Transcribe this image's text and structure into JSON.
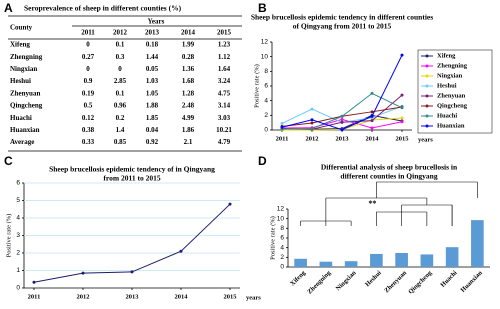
{
  "panels": [
    "A",
    "B",
    "C",
    "D"
  ],
  "table": {
    "title": "Seroprevalence of sheep in different counties (%)",
    "header": [
      "County",
      "Years"
    ],
    "columns": [
      "2011",
      "2012",
      "2013",
      "2014",
      "2015"
    ],
    "rows": [
      [
        "Xifeng",
        0,
        0.1,
        0.18,
        1.99,
        1.23
      ],
      [
        "Zhengning",
        0.27,
        0.3,
        1.44,
        0.28,
        1.12
      ],
      [
        "Ningxian",
        0,
        0,
        0.05,
        1.36,
        1.64
      ],
      [
        "Heshui",
        0.9,
        2.85,
        1.03,
        1.68,
        3.24
      ],
      [
        "Zhenyuan",
        0.19,
        0.1,
        1.05,
        1.28,
        4.75
      ],
      [
        "Qingcheng",
        0.5,
        0.96,
        1.88,
        2.48,
        3.14
      ],
      [
        "Huachi",
        0.12,
        0.2,
        1.85,
        4.99,
        3.03
      ],
      [
        "Huanxian",
        0.38,
        1.4,
        0.04,
        1.86,
        10.21
      ],
      [
        "Average",
        0.33,
        0.85,
        0.92,
        2.1,
        4.79
      ]
    ]
  },
  "chart_data": [
    {
      "type": "line",
      "title": [
        "Sheep brucellosis epidemic tendency in different counties",
        "of Qingyang from 2011 to 2015"
      ],
      "y_label": "Positive rate (%)",
      "x_label": "years",
      "categories": [
        "2011",
        "2012",
        "2013",
        "2014",
        "2015"
      ],
      "ylim": [
        0,
        12
      ],
      "yticks": [
        0,
        2,
        4,
        6,
        8,
        10,
        12
      ],
      "grid": false,
      "legend": "right",
      "series": [
        {
          "name": "Xifeng",
          "color": "#1c1c6e",
          "values": [
            0,
            0.1,
            0.18,
            1.99,
            1.23
          ]
        },
        {
          "name": "Zhengning",
          "color": "#ff00ff",
          "values": [
            0.27,
            0.3,
            1.44,
            0.28,
            1.12
          ]
        },
        {
          "name": "Ningxian",
          "color": "#e6d800",
          "values": [
            0,
            0,
            0.05,
            1.36,
            1.64
          ]
        },
        {
          "name": "Heshui",
          "color": "#66ccff",
          "values": [
            0.9,
            2.85,
            1.03,
            1.68,
            3.24
          ]
        },
        {
          "name": "Zhenyuan",
          "color": "#7a1a7a",
          "values": [
            0.19,
            0.1,
            1.05,
            1.28,
            4.75
          ]
        },
        {
          "name": "Qingcheng",
          "color": "#8b1a1a",
          "values": [
            0.5,
            0.96,
            1.88,
            2.48,
            3.14
          ]
        },
        {
          "name": "Huachi",
          "color": "#2e8b8b",
          "values": [
            0.12,
            0.2,
            1.85,
            4.99,
            3.03
          ]
        },
        {
          "name": "Huanxian",
          "color": "#0000ff",
          "values": [
            0.38,
            1.4,
            0.04,
            1.86,
            10.21
          ]
        }
      ]
    },
    {
      "type": "line",
      "title": [
        "Sheep brucellosis epidemic tendency of in Qingyang",
        "from 2011 to 2015"
      ],
      "y_label": "Positive rate (%)",
      "x_label": "years",
      "categories": [
        "2011",
        "2012",
        "2013",
        "2014",
        "2015"
      ],
      "ylim": [
        0,
        6
      ],
      "yticks": [
        0,
        1,
        2,
        3,
        4,
        5,
        6
      ],
      "grid": true,
      "series": [
        {
          "name": "Average",
          "color": "#1c1c6e",
          "values": [
            0.33,
            0.85,
            0.92,
            2.1,
            4.79
          ]
        }
      ]
    },
    {
      "type": "bar",
      "title": [
        "Differential analysis of sheep brucellosis in",
        "different counties in Qingyang"
      ],
      "y_label": "Positive rate (%)",
      "categories": [
        "Xifeng",
        "Zhengning",
        "Ningxian",
        "Heshui",
        "Zhenyuan",
        "Qingcheng",
        "Huachi",
        "Huanxian"
      ],
      "ylim": [
        0,
        12
      ],
      "yticks": [
        0,
        2,
        4,
        6,
        8,
        10,
        12
      ],
      "grid": false,
      "color": "#5b9bd5",
      "values": [
        1.7,
        1.1,
        1.2,
        2.7,
        2.9,
        2.6,
        4.1,
        9.7
      ],
      "annotation": "**"
    }
  ]
}
